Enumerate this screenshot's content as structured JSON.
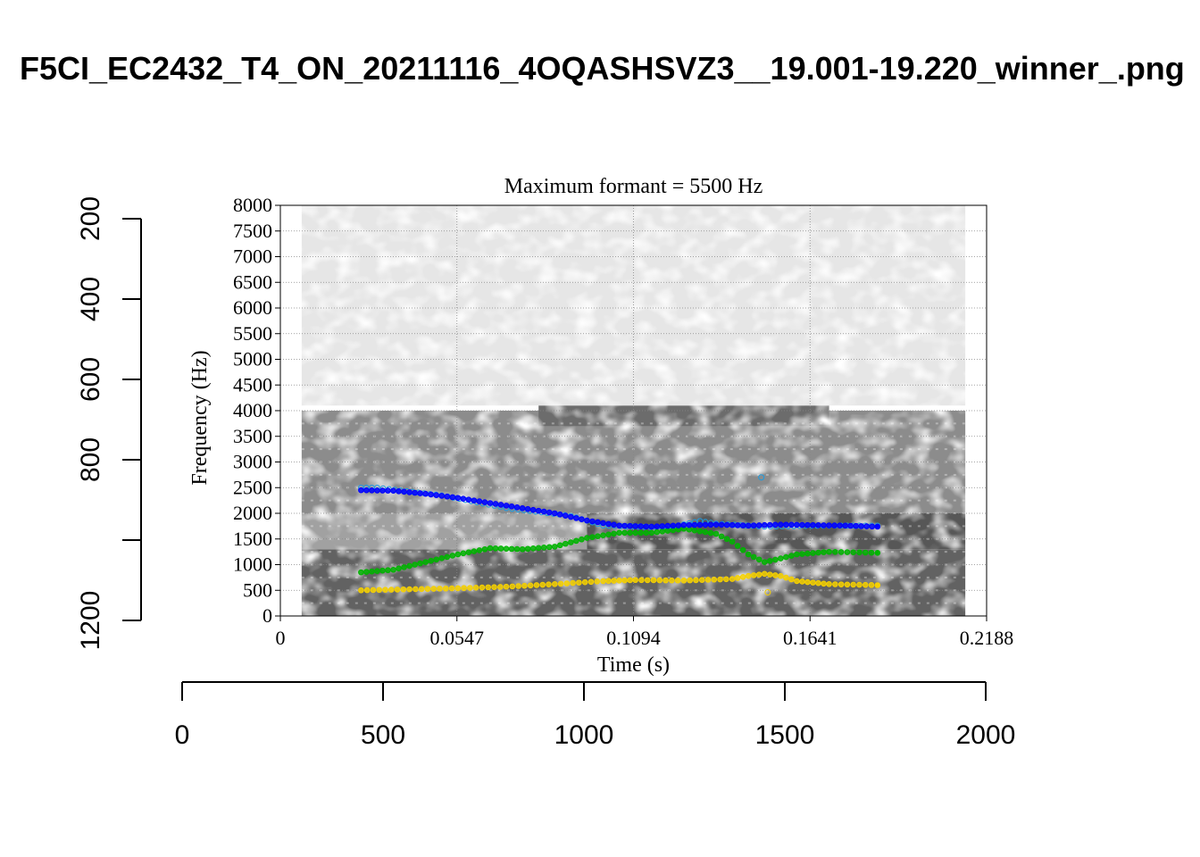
{
  "page": {
    "title": "F5CI_EC2432_T4_ON_20211116_4OQASHSVZ3__19.001-19.220_winner_.png"
  },
  "chart_data": [
    {
      "type": "spectrogram",
      "title": "Maximum formant = 5500 Hz",
      "xlabel": "Time (s)",
      "ylabel": "Frequency (Hz)",
      "xlim": [
        0,
        0.2188
      ],
      "ylim": [
        0,
        8000
      ],
      "x_ticks": [
        "0",
        "0.0547",
        "0.1094",
        "0.1641",
        "0.2188"
      ],
      "x_tick_values": [
        0,
        0.0547,
        0.1094,
        0.1641,
        0.2188
      ],
      "y_ticks": [
        "0",
        "500",
        "1000",
        "1500",
        "2000",
        "2500",
        "3000",
        "3500",
        "4000",
        "4500",
        "5000",
        "5500",
        "6000",
        "6500",
        "7000",
        "7500",
        "8000"
      ],
      "y_tick_values": [
        0,
        500,
        1000,
        1500,
        2000,
        2500,
        3000,
        3500,
        4000,
        4500,
        5000,
        5500,
        6000,
        6500,
        7000,
        7500,
        8000
      ],
      "grid": true,
      "spectrogram_extent": {
        "t": [
          0.0066,
          0.2122
        ],
        "f": [
          0,
          8000
        ]
      },
      "spectrogram_energy": [
        {
          "f": [
            0,
            1300
          ],
          "t": [
            0.0066,
            0.2122
          ],
          "level": 0.75
        },
        {
          "f": [
            1300,
            2000
          ],
          "t": [
            0.0066,
            0.095
          ],
          "level": 0.45
        },
        {
          "f": [
            1300,
            2000
          ],
          "t": [
            0.095,
            0.2122
          ],
          "level": 0.8
        },
        {
          "f": [
            2000,
            4000
          ],
          "t": [
            0.0066,
            0.2122
          ],
          "level": 0.55
        },
        {
          "f": [
            3700,
            4100
          ],
          "t": [
            0.08,
            0.17
          ],
          "level": 0.7
        },
        {
          "f": [
            4100,
            8000
          ],
          "t": [
            0.0066,
            0.2122
          ],
          "level": 0.12
        }
      ],
      "formant_colors": {
        "F1": "#f5d000",
        "F2": "#00b400",
        "F3": "#0000ff",
        "F3_alt": "#1e9be0"
      },
      "formants": [
        {
          "name": "F1",
          "t": [
            0.025,
            0.04,
            0.055,
            0.07,
            0.085,
            0.1,
            0.11,
            0.125,
            0.14,
            0.145,
            0.15,
            0.155,
            0.16,
            0.17,
            0.185
          ],
          "f": [
            500,
            520,
            540,
            570,
            620,
            680,
            700,
            690,
            720,
            780,
            820,
            780,
            680,
            620,
            600
          ]
        },
        {
          "name": "F2",
          "t": [
            0.025,
            0.035,
            0.045,
            0.055,
            0.065,
            0.075,
            0.085,
            0.095,
            0.105,
            0.115,
            0.125,
            0.135,
            0.14,
            0.145,
            0.15,
            0.155,
            0.16,
            0.17,
            0.185
          ],
          "f": [
            850,
            900,
            1050,
            1200,
            1320,
            1300,
            1350,
            1520,
            1620,
            1620,
            1700,
            1600,
            1450,
            1200,
            1050,
            1120,
            1200,
            1250,
            1230
          ]
        },
        {
          "name": "F3",
          "t": [
            0.025,
            0.035,
            0.045,
            0.055,
            0.065,
            0.075,
            0.085,
            0.095,
            0.105,
            0.115,
            0.125,
            0.135,
            0.145,
            0.155,
            0.165,
            0.175,
            0.185
          ],
          "f": [
            2450,
            2440,
            2380,
            2300,
            2200,
            2100,
            2000,
            1860,
            1760,
            1740,
            1770,
            1780,
            1760,
            1780,
            1770,
            1760,
            1740
          ]
        },
        {
          "name": "F3_alt",
          "t": [
            0.025,
            0.03,
            0.05,
            0.07,
            0.09,
            0.1,
            0.12,
            0.13,
            0.135,
            0.15,
            0.17,
            0.185
          ],
          "f": [
            2500,
            2500,
            2350,
            2100,
            1950,
            1760,
            1720,
            1850,
            1800,
            1740,
            1760,
            1760
          ]
        }
      ],
      "outliers": [
        {
          "name": "F3_alt",
          "t": [
            0.149
          ],
          "f": [
            2700
          ]
        },
        {
          "name": "F1",
          "t": [
            0.151
          ],
          "f": [
            460
          ]
        }
      ]
    },
    {
      "type": "axis",
      "orientation": "vertical",
      "ticks": [
        "200",
        "400",
        "600",
        "800",
        "1000",
        "1200"
      ],
      "tick_values": [
        200,
        400,
        600,
        800,
        1000,
        1200
      ],
      "visible_tick_labels": [
        "200",
        "400",
        "600",
        "800",
        "1200"
      ],
      "range": [
        200,
        1200
      ]
    },
    {
      "type": "axis",
      "orientation": "horizontal",
      "ticks": [
        "0",
        "500",
        "1000",
        "1500",
        "2000"
      ],
      "tick_values": [
        0,
        500,
        1000,
        1500,
        2000
      ],
      "range": [
        0,
        2000
      ]
    }
  ]
}
